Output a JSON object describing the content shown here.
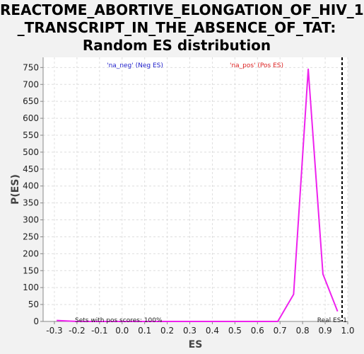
{
  "title_lines": [
    "REACTOME_ABORTIVE_ELONGATION_OF_HIV_1",
    "_TRANSCRIPT_IN_THE_ABSENCE_OF_TAT:",
    "Random ES distribution"
  ],
  "chart_data": {
    "type": "line",
    "xlabel": "ES",
    "ylabel": "P(ES)",
    "xlim": [
      -0.35,
      1.0
    ],
    "ylim": [
      0,
      780
    ],
    "xticks": [
      -0.3,
      -0.2,
      -0.1,
      0.0,
      0.1,
      0.2,
      0.3,
      0.4,
      0.5,
      0.6,
      0.7,
      0.8,
      0.9,
      1.0
    ],
    "xtick_labels": [
      "-0.3",
      "-0.2",
      "-0.1",
      "0.0",
      "0.1",
      "0.2",
      "0.3",
      "0.4",
      "0.5",
      "0.6",
      "0.7",
      "0.8",
      "0.9",
      "1.0"
    ],
    "yticks": [
      0,
      50,
      100,
      150,
      200,
      250,
      300,
      350,
      400,
      450,
      500,
      550,
      600,
      650,
      700,
      750
    ],
    "grid": true,
    "series": [
      {
        "color": "#ee22ee",
        "x": [
          -0.29,
          -0.2,
          0.69,
          0.76,
          0.825,
          0.89,
          0.955
        ],
        "y": [
          3,
          0,
          0,
          80,
          745,
          140,
          30
        ]
      }
    ],
    "real_es": 0.975,
    "annotations": {
      "neg_label": "'na_neg' (Neg ES)",
      "pos_label": "'na_pos' (Pos ES)",
      "neg_color": "#2222cc",
      "pos_color": "#dd2222",
      "sets_label": "Sets with pos scores: 100%",
      "real_es_label": "Real ES 1"
    }
  }
}
